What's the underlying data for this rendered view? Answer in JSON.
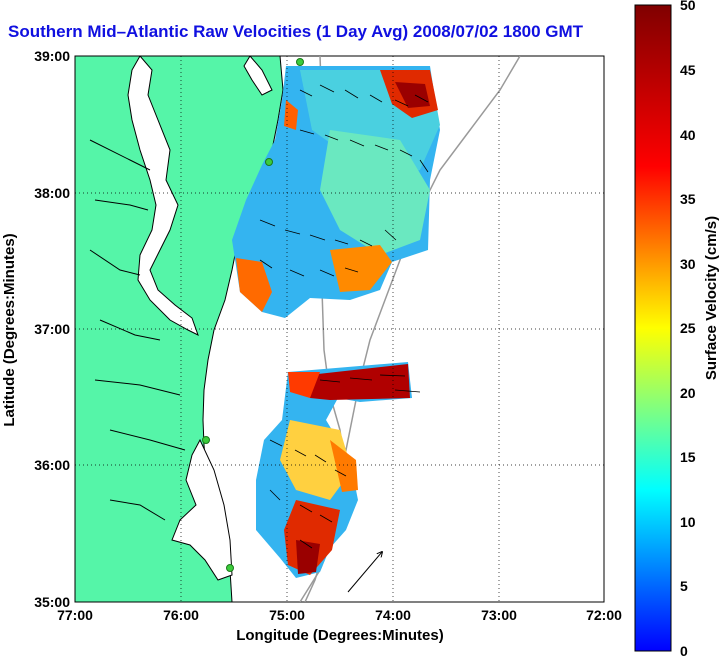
{
  "title": "Southern Mid–Atlantic Raw Velocities (1 Day Avg) 2008/07/02 1800 GMT",
  "xlabel": "Longitude (Degrees:Minutes)",
  "ylabel": "Latitude (Degrees:Minutes)",
  "x_ticks": [
    "77:00",
    "76:00",
    "75:00",
    "74:00",
    "73:00",
    "72:00"
  ],
  "y_ticks": [
    "39:00",
    "38:00",
    "37:00",
    "36:00",
    "35:00"
  ],
  "colorbar": {
    "label": "Surface Velocity (cm/s)",
    "ticks": [
      "50",
      "45",
      "40",
      "35",
      "30",
      "25",
      "20",
      "15",
      "10",
      "5",
      "0"
    ],
    "range": [
      0,
      50
    ]
  },
  "colors": {
    "land": "#55f5a8",
    "coast": "#000000",
    "bathymetry": "#9a9a9a",
    "station": "#3ccc3c",
    "title": "#1010e0"
  }
}
